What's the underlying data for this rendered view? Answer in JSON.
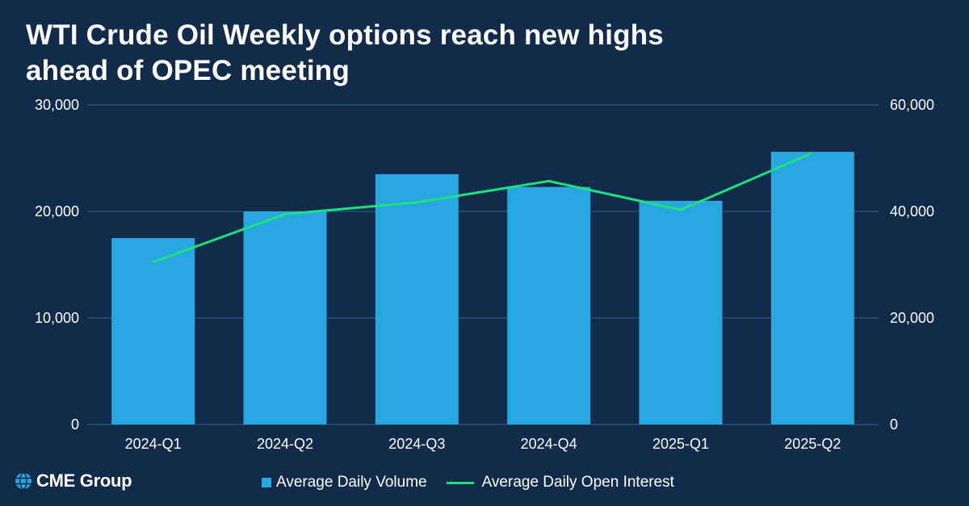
{
  "title_line1": "WTI Crude Oil Weekly options reach new highs",
  "title_line2": "ahead of OPEC meeting",
  "logo_text": "CME Group",
  "colors": {
    "background": "#132b4b",
    "bar": "#27a6e0",
    "line": "#1be07d",
    "grid": "#2f5b8e"
  },
  "chart_data": {
    "type": "bar",
    "categories": [
      "2024-Q1",
      "2024-Q2",
      "2024-Q3",
      "2024-Q4",
      "2025-Q1",
      "2025-Q2"
    ],
    "series": [
      {
        "name": "Average Daily Volume",
        "type": "bar",
        "axis": "left",
        "values": [
          17500,
          20000,
          23500,
          22300,
          21000,
          25600
        ]
      },
      {
        "name": "Average Daily Open Interest",
        "type": "line",
        "axis": "right",
        "values": [
          30500,
          39500,
          41700,
          45700,
          40300,
          51000
        ]
      }
    ],
    "y_left": {
      "ylim": [
        0,
        30000
      ],
      "ticks": [
        "0",
        "10,000",
        "20,000",
        "30,000"
      ]
    },
    "y_right": {
      "ylim": [
        0,
        60000
      ],
      "ticks": [
        "0",
        "20,000",
        "40,000",
        "60,000"
      ]
    },
    "grid": true,
    "legend": "bottom"
  }
}
